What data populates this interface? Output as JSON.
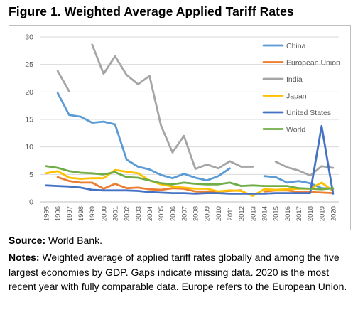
{
  "figure_title": "Figure 1. Weighted Average Applied Tariff Rates",
  "source": {
    "label": "Source:",
    "text": " World Bank."
  },
  "notes": {
    "label": "Notes:",
    "text": " Weighted average of applied tariff rates globally and among the five largest economies by GDP. Gaps indicate missing data. 2020 is the most recent year with fully comparable data. Europe refers to the European Union."
  },
  "chart_data": {
    "type": "line",
    "title": "",
    "xlabel": "",
    "ylabel": "",
    "ylim": [
      0,
      30
    ],
    "yticks": [
      0,
      5,
      10,
      15,
      20,
      25,
      30
    ],
    "grid": "horizontal",
    "legend_position": "right",
    "x": [
      1995,
      1996,
      1997,
      1998,
      1999,
      2000,
      2001,
      2002,
      2003,
      2004,
      2005,
      2006,
      2007,
      2008,
      2009,
      2010,
      2011,
      2012,
      2013,
      2014,
      2015,
      2016,
      2017,
      2018,
      2019,
      2020
    ],
    "series": [
      {
        "name": "China",
        "color": "#5b9bd5",
        "values": [
          null,
          19.8,
          15.8,
          15.5,
          14.4,
          14.6,
          14.1,
          7.7,
          6.4,
          5.9,
          4.9,
          4.3,
          5.1,
          4.4,
          3.9,
          4.7,
          6.1,
          null,
          null,
          4.7,
          4.5,
          3.5,
          3.8,
          3.4,
          2.5,
          2.4
        ]
      },
      {
        "name": "European Union",
        "color": "#ed7d31",
        "values": [
          null,
          4.5,
          3.8,
          3.5,
          3.5,
          2.4,
          3.3,
          2.5,
          2.6,
          2.3,
          2.2,
          2.5,
          2.4,
          1.9,
          1.9,
          1.9,
          2.0,
          2.1,
          null,
          1.9,
          2.1,
          2.1,
          1.8,
          1.8,
          1.7,
          1.6
        ]
      },
      {
        "name": "India",
        "color": "#a5a5a5",
        "values": [
          null,
          23.8,
          20.1,
          null,
          28.6,
          23.3,
          26.5,
          23.1,
          21.4,
          22.9,
          13.9,
          9.0,
          12.0,
          6.0,
          6.8,
          6.1,
          7.4,
          6.4,
          6.4,
          null,
          7.3,
          6.3,
          5.7,
          4.8,
          6.5,
          6.2
        ]
      },
      {
        "name": "Japan",
        "color": "#ffc000",
        "values": [
          5.2,
          5.6,
          4.4,
          4.2,
          4.3,
          4.3,
          5.8,
          5.5,
          5.2,
          3.9,
          3.2,
          2.8,
          2.6,
          2.4,
          2.4,
          1.9,
          2.1,
          2.0,
          1.1,
          2.3,
          2.2,
          2.3,
          2.4,
          2.4,
          3.5,
          2.0
        ]
      },
      {
        "name": "United States",
        "color": "#4472c4",
        "values": [
          3.0,
          2.9,
          2.8,
          2.6,
          2.2,
          2.1,
          2.1,
          2.1,
          2.0,
          1.8,
          1.7,
          1.6,
          1.6,
          1.5,
          1.6,
          1.6,
          1.5,
          1.5,
          1.5,
          1.5,
          1.6,
          1.6,
          1.6,
          1.6,
          13.8,
          1.5
        ]
      },
      {
        "name": "World",
        "color": "#70ad47",
        "values": [
          6.5,
          6.2,
          5.6,
          5.3,
          5.2,
          5.0,
          5.4,
          4.5,
          4.4,
          3.9,
          3.4,
          3.2,
          3.5,
          3.3,
          3.2,
          3.2,
          3.5,
          2.9,
          3.0,
          2.9,
          2.9,
          2.9,
          2.5,
          2.4,
          2.3,
          2.5
        ]
      }
    ]
  }
}
